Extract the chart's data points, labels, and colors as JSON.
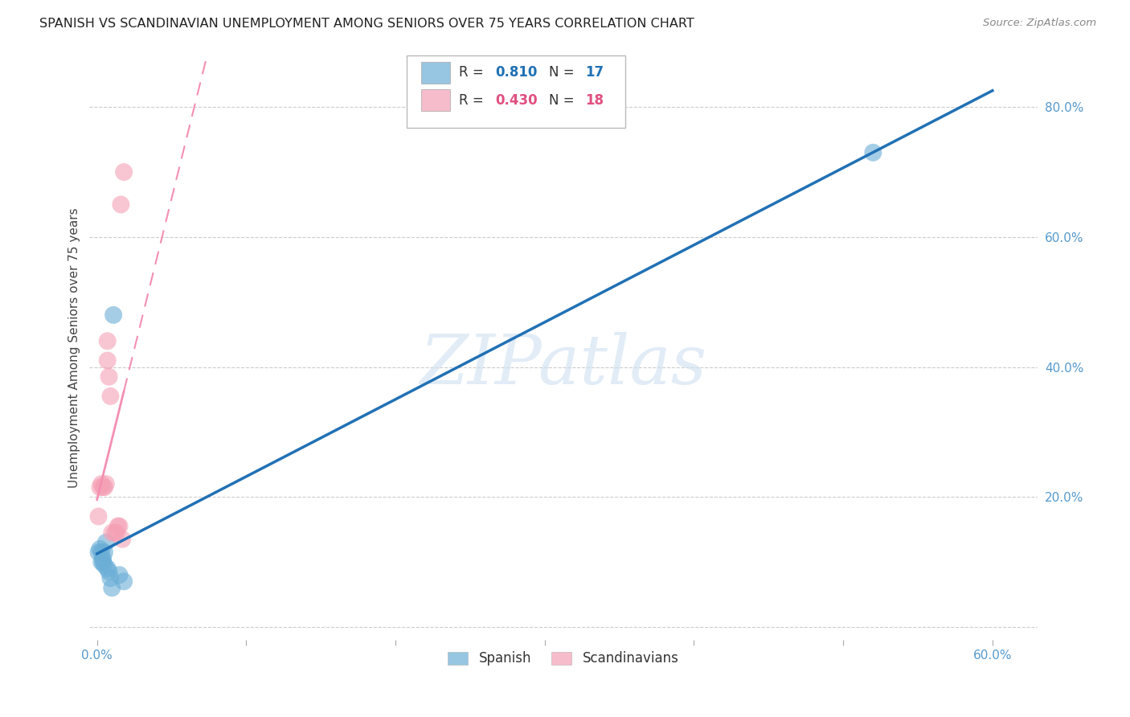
{
  "title": "SPANISH VS SCANDINAVIAN UNEMPLOYMENT AMONG SENIORS OVER 75 YEARS CORRELATION CHART",
  "source": "Source: ZipAtlas.com",
  "ylabel": "Unemployment Among Seniors over 75 years",
  "xlim": [
    -0.005,
    0.63
  ],
  "ylim": [
    -0.02,
    0.88
  ],
  "xticks": [
    0.0,
    0.1,
    0.2,
    0.3,
    0.4,
    0.5,
    0.6
  ],
  "yticks": [
    0.0,
    0.2,
    0.4,
    0.6,
    0.8
  ],
  "xtick_labels": [
    "0.0%",
    "",
    "",
    "",
    "",
    "",
    "60.0%"
  ],
  "ytick_labels_right": [
    "",
    "20.0%",
    "40.0%",
    "60.0%",
    "80.0%"
  ],
  "spanish_x": [
    0.001,
    0.002,
    0.003,
    0.003,
    0.004,
    0.004,
    0.005,
    0.005,
    0.006,
    0.007,
    0.008,
    0.009,
    0.01,
    0.011,
    0.015,
    0.018,
    0.52
  ],
  "spanish_y": [
    0.115,
    0.12,
    0.1,
    0.115,
    0.1,
    0.105,
    0.095,
    0.115,
    0.13,
    0.09,
    0.085,
    0.075,
    0.06,
    0.48,
    0.08,
    0.07,
    0.73
  ],
  "scandinavian_x": [
    0.001,
    0.002,
    0.003,
    0.004,
    0.005,
    0.006,
    0.007,
    0.007,
    0.008,
    0.009,
    0.01,
    0.012,
    0.013,
    0.014,
    0.015,
    0.016,
    0.017,
    0.018
  ],
  "scandinavian_y": [
    0.17,
    0.215,
    0.22,
    0.215,
    0.215,
    0.22,
    0.44,
    0.41,
    0.385,
    0.355,
    0.145,
    0.145,
    0.145,
    0.155,
    0.155,
    0.65,
    0.135,
    0.7
  ],
  "spanish_color": "#6aaed6",
  "scandinavian_color": "#f4a0b5",
  "spanish_line_color": "#2171b5",
  "scandinavian_line_color": "#f48fb1",
  "spanish_R": 0.81,
  "spanish_N": 17,
  "scandinavian_R": 0.43,
  "scandinavian_N": 18,
  "watermark_text": "ZIPatlas",
  "background_color": "#ffffff",
  "grid_color": "#cccccc",
  "legend_blue_R": "0.810",
  "legend_blue_N": "17",
  "legend_pink_R": "0.430",
  "legend_pink_N": "18"
}
